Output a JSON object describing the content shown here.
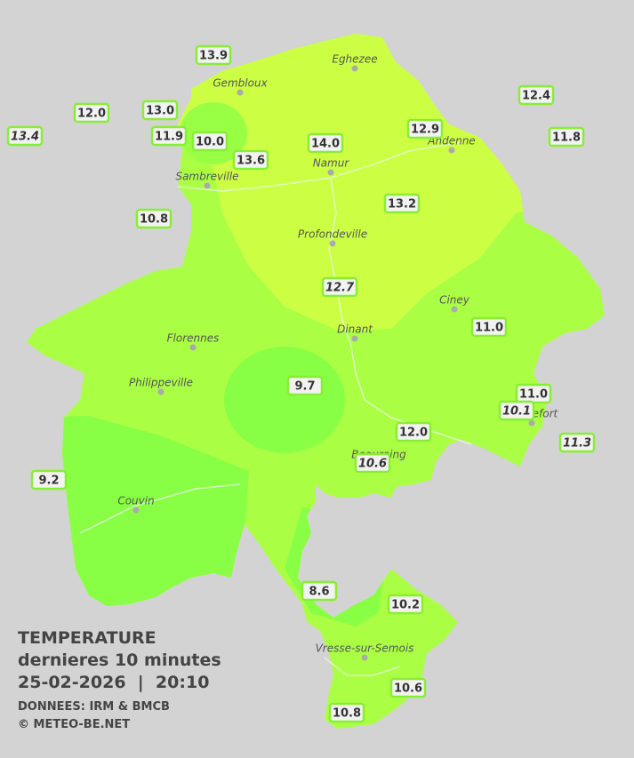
{
  "caption": {
    "title": "TEMPERATURE",
    "subtitle": "dernieres 10 minutes",
    "datetime": "25-02-2026  |  20:10",
    "source": "DONNEES: IRM & BMCB",
    "copyright": "© METEO-BE.NET"
  },
  "towns": [
    "Eghezee",
    "Gembloux",
    "Andenne",
    "Namur",
    "Sambreville",
    "Profondeville",
    "Ciney",
    "Dinant",
    "Florennes",
    "Philippeville",
    "Rochefort",
    "Beauraing",
    "Couvin",
    "Vresse-sur-Semois"
  ],
  "stations": [
    {
      "label": "13.9"
    },
    {
      "label": "12.0"
    },
    {
      "label": "13.0"
    },
    {
      "label": "13.4",
      "italic": true
    },
    {
      "label": "11.9"
    },
    {
      "label": "10.0"
    },
    {
      "label": "13.6"
    },
    {
      "label": "14.0"
    },
    {
      "label": "12.9"
    },
    {
      "label": "12.4"
    },
    {
      "label": "11.8"
    },
    {
      "label": "13.2"
    },
    {
      "label": "10.8"
    },
    {
      "label": "12.7",
      "italic": true
    },
    {
      "label": "11.0"
    },
    {
      "label": "9.7"
    },
    {
      "label": "11.0"
    },
    {
      "label": "10.1",
      "italic": true
    },
    {
      "label": "12.0"
    },
    {
      "label": "10.6",
      "italic": true
    },
    {
      "label": "11.3",
      "italic": true
    },
    {
      "label": "9.2"
    },
    {
      "label": "8.6"
    },
    {
      "label": "10.2"
    },
    {
      "label": "10.6"
    },
    {
      "label": "10.8"
    }
  ]
}
